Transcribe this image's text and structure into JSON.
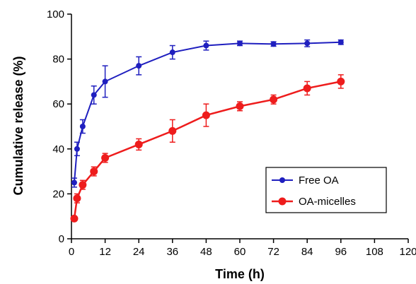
{
  "chart_data": {
    "type": "line",
    "title": "",
    "xlabel": "Time (h)",
    "ylabel": "Cumulative release (%)",
    "xlim": [
      0,
      120
    ],
    "ylim": [
      0,
      100
    ],
    "x_ticks": [
      "0",
      "12",
      "24",
      "36",
      "48",
      "60",
      "72",
      "84",
      "96",
      "108",
      "120"
    ],
    "y_ticks": [
      "0",
      "20",
      "40",
      "60",
      "80",
      "100"
    ],
    "grid": false,
    "legend_position": "bottom-right",
    "series": [
      {
        "name": "Free OA",
        "color": "#1f1fbf",
        "marker": "circle-small",
        "points": [
          {
            "x": 1,
            "y": 25,
            "err": 2
          },
          {
            "x": 2,
            "y": 40,
            "err": 3
          },
          {
            "x": 4,
            "y": 50,
            "err": 3
          },
          {
            "x": 8,
            "y": 64,
            "err": 4
          },
          {
            "x": 12,
            "y": 70,
            "err": 7
          },
          {
            "x": 24,
            "y": 77,
            "err": 4
          },
          {
            "x": 36,
            "y": 83,
            "err": 3
          },
          {
            "x": 48,
            "y": 86,
            "err": 2
          },
          {
            "x": 60,
            "y": 87,
            "err": 1
          },
          {
            "x": 72,
            "y": 86.7,
            "err": 1
          },
          {
            "x": 84,
            "y": 87,
            "err": 1.5
          },
          {
            "x": 96,
            "y": 87.5,
            "err": 1
          }
        ]
      },
      {
        "name": "OA-micelles",
        "color": "#ee1c1c",
        "marker": "circle-large",
        "points": [
          {
            "x": 1,
            "y": 9,
            "err": 1
          },
          {
            "x": 2,
            "y": 18,
            "err": 2
          },
          {
            "x": 4,
            "y": 24,
            "err": 2
          },
          {
            "x": 8,
            "y": 30,
            "err": 2
          },
          {
            "x": 12,
            "y": 36,
            "err": 2
          },
          {
            "x": 24,
            "y": 42,
            "err": 2.5
          },
          {
            "x": 36,
            "y": 48,
            "err": 5
          },
          {
            "x": 48,
            "y": 55,
            "err": 5
          },
          {
            "x": 60,
            "y": 59,
            "err": 2
          },
          {
            "x": 72,
            "y": 62,
            "err": 2
          },
          {
            "x": 84,
            "y": 67,
            "err": 3
          },
          {
            "x": 96,
            "y": 70,
            "err": 3
          }
        ]
      }
    ]
  }
}
